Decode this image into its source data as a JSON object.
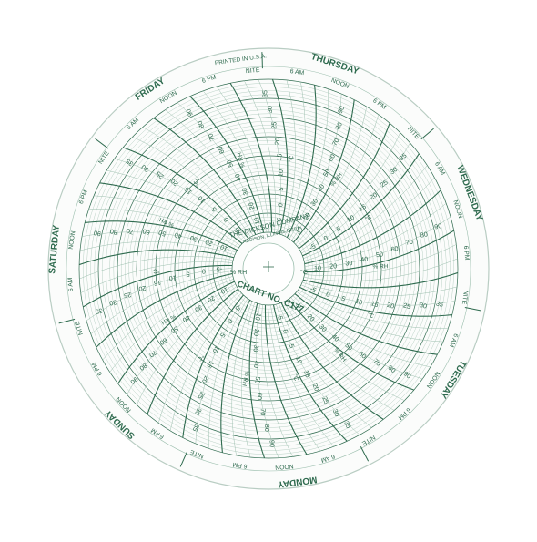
{
  "chart_data": {
    "type": "circular-recorder-chart",
    "printed_note": "PRINTED IN U.S.A.",
    "center": {
      "company": "THE DICKSON COMPANY",
      "address": "ADDISON, ILLINOIS 60101",
      "chart_number": "CHART NO. C177",
      "rh_label": "% RH",
      "temp_label": "°C"
    },
    "days": [
      "THURSDAY",
      "WEDNESDAY",
      "TUESDAY",
      "MONDAY",
      "SUNDAY",
      "SATURDAY",
      "FRIDAY"
    ],
    "day_time_labels": [
      "6 AM",
      "NOON",
      "6 PM",
      "NITE"
    ],
    "temperature_scale": {
      "unit": "°C",
      "ticks": [
        "-5",
        "0",
        "5",
        "10",
        "15",
        "20",
        "25",
        "30",
        "35"
      ]
    },
    "humidity_scale": {
      "unit": "% RH",
      "ticks": [
        "10",
        "20",
        "30",
        "40",
        "50",
        "60",
        "70",
        "80",
        "90"
      ]
    },
    "colors": {
      "ink": "#2f6b4f",
      "grid": "#9cbfae",
      "paper": "#fbfcfb"
    }
  }
}
